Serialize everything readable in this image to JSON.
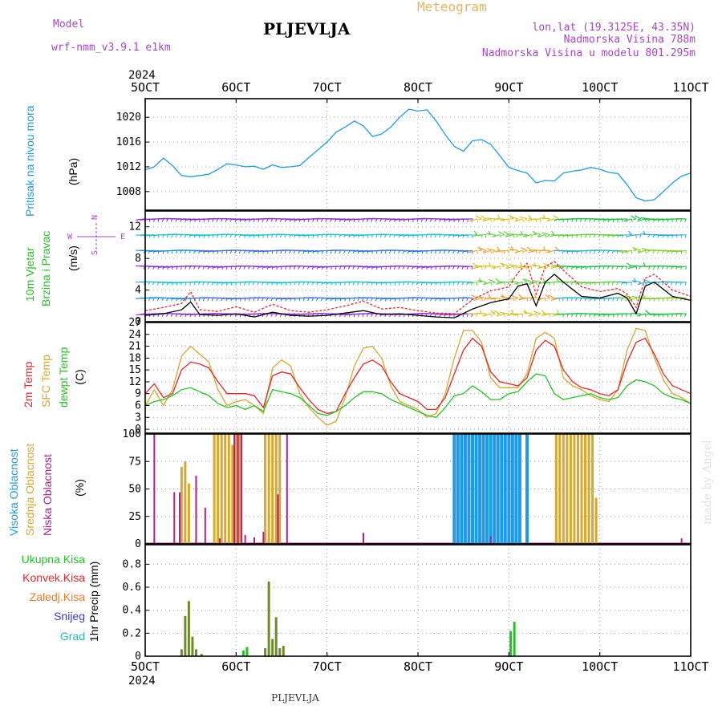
{
  "header": {
    "model_label": "Model",
    "model_name": "wrf-nmm_v3.9.1  e1km",
    "station": "PLJEVLJA",
    "meteogram_label": "Meteogram",
    "lonlat": "lon,lat (19.3125E, 43.35N)",
    "altitude": "Nadmorska Visina 788m",
    "model_altitude": "Nadmorska Visina u modelu 801.295m",
    "credit": "made by Angel",
    "footer_station": "PLJEVLJA"
  },
  "colors": {
    "pressure": "#1e9be8",
    "wind_speed": "#000000",
    "wind_gust": "#e8262a",
    "temp2m": "#e8262a",
    "sfc_temp": "#d9a72b",
    "dewpoint": "#22c322",
    "high_cloud": "#1e9be8",
    "mid_cloud": "#d9a72b",
    "low_cloud": "#b0208a",
    "total_precip": "#22c322",
    "conv_precip": "#e8262a",
    "snow": "#3b3bd6",
    "hail": "#1fc0b0",
    "frozen_precip": "#f07a26",
    "label_purple": "#a846c9",
    "meteogram_orange": "#e3b45e"
  },
  "time_axis": {
    "year": "2024",
    "ticks": [
      "5OCT",
      "6OCT",
      "7OCT",
      "8OCT",
      "9OCT",
      "10OCT",
      "11OCT"
    ],
    "start_day": 5,
    "end_day": 11
  },
  "chart_data": [
    {
      "type": "line",
      "panel": "pressure",
      "ylabel_colored": "Pritisak na nivou mora",
      "unit": "(hPa)",
      "ylim": [
        1005,
        1023
      ],
      "yticks": [
        1008,
        1012,
        1016,
        1020
      ],
      "grid": true,
      "x": [
        5.0,
        5.1,
        5.2,
        5.3,
        5.4,
        5.5,
        5.6,
        5.7,
        5.8,
        5.9,
        6.0,
        6.1,
        6.2,
        6.3,
        6.4,
        6.5,
        6.6,
        6.7,
        6.8,
        7.0,
        7.1,
        7.2,
        7.3,
        7.4,
        7.5,
        7.6,
        7.7,
        7.8,
        7.9,
        8.0,
        8.1,
        8.2,
        8.3,
        8.4,
        8.5,
        8.6,
        8.7,
        8.8,
        8.9,
        9.0,
        9.1,
        9.2,
        9.3,
        9.4,
        9.5,
        9.6,
        9.7,
        9.8,
        9.9,
        10.0,
        10.1,
        10.2,
        10.3,
        10.4,
        10.5,
        10.6,
        10.7,
        10.8,
        10.9,
        11.0
      ],
      "series": [
        {
          "values": [
            1011.5,
            1012.0,
            1013.4,
            1012.2,
            1010.6,
            1010.4,
            1010.6,
            1010.8,
            1011.6,
            1012.5,
            1012.3,
            1012.0,
            1012.1,
            1011.6,
            1012.3,
            1011.9,
            1012.0,
            1012.2,
            1013.5,
            1016.0,
            1017.6,
            1018.4,
            1019.4,
            1018.6,
            1016.9,
            1017.3,
            1018.4,
            1020.0,
            1021.3,
            1021.0,
            1021.2,
            1019.4,
            1017.2,
            1015.3,
            1014.5,
            1016.2,
            1016.4,
            1015.6,
            1013.8,
            1011.9,
            1011.4,
            1011.0,
            1009.4,
            1009.8,
            1009.7,
            1011.0,
            1011.3,
            1011.5,
            1011.9,
            1011.6,
            1011.1,
            1010.9,
            1009.1,
            1007.0,
            1006.5,
            1006.7,
            1008.0,
            1009.4,
            1010.5,
            1011.0
          ]
        }
      ]
    },
    {
      "type": "line",
      "panel": "wind",
      "ylabel_colored_1": "10m Vjetar",
      "ylabel_colored_2": "Brzina i Pravac",
      "unit": "(m/s)",
      "compass": {
        "n": "N",
        "s": "S",
        "e": "E",
        "w": "W"
      },
      "ylim": [
        0,
        14
      ],
      "yticks": [
        0,
        4,
        8,
        12
      ],
      "grid": true,
      "x": [
        5.0,
        5.2,
        5.4,
        5.5,
        5.6,
        5.8,
        6.0,
        6.2,
        6.4,
        6.6,
        6.8,
        7.0,
        7.2,
        7.4,
        7.6,
        7.8,
        8.0,
        8.2,
        8.4,
        8.6,
        8.8,
        9.0,
        9.1,
        9.2,
        9.3,
        9.4,
        9.5,
        9.6,
        9.8,
        10.0,
        10.2,
        10.3,
        10.4,
        10.5,
        10.6,
        10.8,
        11.0
      ],
      "series": [
        {
          "name": "speed",
          "values": [
            0.8,
            1.0,
            1.5,
            2.5,
            0.9,
            0.8,
            1.0,
            0.6,
            1.2,
            0.8,
            0.7,
            0.8,
            1.1,
            1.4,
            0.9,
            1.0,
            0.8,
            0.6,
            0.5,
            1.6,
            2.4,
            2.9,
            4.5,
            4.8,
            2.0,
            5.0,
            6.0,
            5.0,
            3.2,
            3.0,
            3.6,
            3.0,
            1.0,
            4.5,
            5.0,
            3.2,
            2.7
          ]
        },
        {
          "name": "gust",
          "values": [
            1.4,
            1.8,
            2.3,
            3.8,
            1.5,
            1.3,
            1.9,
            1.2,
            2.2,
            1.4,
            1.2,
            1.5,
            2.0,
            2.6,
            1.6,
            1.8,
            1.4,
            1.1,
            1.0,
            2.8,
            3.9,
            4.4,
            6.2,
            7.4,
            3.5,
            7.0,
            7.6,
            6.5,
            4.4,
            3.8,
            4.2,
            3.5,
            1.8,
            5.5,
            6.0,
            4.0,
            3.2
          ]
        }
      ],
      "barb_levels": [
        0,
        2,
        4,
        6,
        8,
        10,
        12,
        14
      ]
    },
    {
      "type": "line",
      "panel": "temperature",
      "ylabel_colored_1": "2m Temp",
      "ylabel_colored_2": "SFC Temp",
      "ylabel_colored_3": "dewpt Temp",
      "unit": "(C)",
      "ylim": [
        -1,
        27
      ],
      "yticks": [
        0,
        3,
        6,
        9,
        12,
        15,
        18,
        21,
        24,
        27
      ],
      "grid": true,
      "x": [
        5.0,
        5.1,
        5.2,
        5.3,
        5.4,
        5.5,
        5.6,
        5.7,
        5.8,
        5.9,
        6.0,
        6.1,
        6.2,
        6.3,
        6.4,
        6.5,
        6.6,
        6.7,
        6.8,
        6.9,
        7.0,
        7.1,
        7.2,
        7.3,
        7.4,
        7.5,
        7.6,
        7.7,
        7.8,
        7.9,
        8.0,
        8.1,
        8.2,
        8.3,
        8.4,
        8.5,
        8.6,
        8.7,
        8.8,
        8.9,
        9.0,
        9.1,
        9.2,
        9.3,
        9.4,
        9.5,
        9.6,
        9.7,
        9.8,
        9.9,
        10.0,
        10.1,
        10.2,
        10.3,
        10.4,
        10.5,
        10.6,
        10.7,
        10.8,
        10.9,
        11.0
      ],
      "series": [
        {
          "name": "2m",
          "values": [
            9.0,
            11.5,
            8.0,
            9.0,
            15.0,
            17.0,
            16.5,
            15.5,
            12.0,
            9.0,
            9.0,
            9.0,
            8.5,
            5.5,
            13.5,
            14.5,
            14.0,
            10.5,
            7.5,
            5.0,
            4.0,
            4.5,
            9.0,
            13.0,
            16.5,
            17.5,
            16.0,
            12.0,
            9.0,
            8.0,
            7.0,
            5.0,
            5.0,
            8.0,
            14.0,
            20.0,
            23.0,
            21.0,
            14.5,
            12.0,
            11.5,
            11.0,
            13.0,
            20.0,
            22.5,
            21.0,
            15.0,
            12.0,
            10.5,
            10.0,
            9.0,
            8.5,
            10.0,
            17.0,
            22.0,
            23.0,
            19.0,
            14.0,
            11.0,
            10.0,
            9.0
          ]
        },
        {
          "name": "sfc",
          "values": [
            6.0,
            10.0,
            6.0,
            10.0,
            18.5,
            21.0,
            19.0,
            17.0,
            10.0,
            6.0,
            7.0,
            7.5,
            6.0,
            4.0,
            15.5,
            17.5,
            16.0,
            9.0,
            5.5,
            3.0,
            1.0,
            2.0,
            8.0,
            16.0,
            20.5,
            21.0,
            18.0,
            11.0,
            7.0,
            6.0,
            5.0,
            3.0,
            4.0,
            9.0,
            18.0,
            25.0,
            25.0,
            22.0,
            13.0,
            10.5,
            10.5,
            10.5,
            14.0,
            23.0,
            24.5,
            23.0,
            13.0,
            11.0,
            10.0,
            8.5,
            7.5,
            7.0,
            10.0,
            20.0,
            25.5,
            25.0,
            18.0,
            12.5,
            9.0,
            8.0,
            6.5
          ]
        },
        {
          "name": "dewpoint",
          "values": [
            6.0,
            7.0,
            7.5,
            8.5,
            10.0,
            10.5,
            9.5,
            8.5,
            6.5,
            5.5,
            6.0,
            5.0,
            6.0,
            4.5,
            10.0,
            9.5,
            9.0,
            8.0,
            6.0,
            4.0,
            3.5,
            4.5,
            6.0,
            8.0,
            9.5,
            9.5,
            9.0,
            7.5,
            6.5,
            5.5,
            4.5,
            3.5,
            3.0,
            5.5,
            8.5,
            9.0,
            11.0,
            9.5,
            7.5,
            7.5,
            9.0,
            9.5,
            12.0,
            14.0,
            13.5,
            9.0,
            7.5,
            8.0,
            8.5,
            9.0,
            8.0,
            7.5,
            8.0,
            11.0,
            12.5,
            12.0,
            11.0,
            9.0,
            8.0,
            7.5,
            6.5
          ]
        }
      ]
    },
    {
      "type": "bar",
      "panel": "clouds",
      "ylabel_colored_1": "Visoka Oblacnost",
      "ylabel_colored_2": "Srednja Oblacnost",
      "ylabel_colored_3": "Niska Oblacnost",
      "unit": "(%)",
      "ylim": [
        0,
        100
      ],
      "yticks": [
        0,
        25,
        50,
        75,
        100
      ],
      "grid": true,
      "series": [
        {
          "name": "high",
          "x": [
            8.4,
            8.44,
            8.48,
            8.52,
            8.56,
            8.6,
            8.64,
            8.68,
            8.72,
            8.76,
            8.8,
            8.84,
            8.88,
            8.92,
            8.96,
            9.0,
            9.04,
            9.08,
            9.12,
            9.2
          ],
          "values": [
            100,
            100,
            100,
            100,
            100,
            100,
            100,
            100,
            100,
            100,
            100,
            100,
            100,
            100,
            100,
            100,
            100,
            100,
            100,
            100
          ]
        },
        {
          "name": "mid",
          "x": [
            5.4,
            5.44,
            5.48,
            5.76,
            5.8,
            5.84,
            5.88,
            5.92,
            5.96,
            6.0,
            6.04,
            6.32,
            6.36,
            6.4,
            6.44,
            6.48,
            9.52,
            9.56,
            9.6,
            9.64,
            9.68,
            9.72,
            9.76,
            9.8,
            9.84,
            9.88,
            9.92,
            9.96
          ],
          "values": [
            70,
            75,
            55,
            100,
            100,
            100,
            100,
            100,
            90,
            100,
            100,
            100,
            100,
            100,
            100,
            100,
            100,
            100,
            100,
            100,
            100,
            100,
            100,
            100,
            100,
            100,
            100,
            42
          ]
        },
        {
          "name": "low",
          "x": [
            5.1,
            5.32,
            5.38,
            5.56,
            5.66,
            5.82,
            5.98,
            6.02,
            6.06,
            6.1,
            6.2,
            6.3,
            6.46,
            6.56,
            7.4,
            8.8,
            10.9,
            11.3,
            11.4,
            12.0
          ],
          "values": [
            100,
            47,
            47,
            62,
            33,
            5,
            100,
            100,
            100,
            8,
            6,
            11,
            45,
            100,
            10,
            7,
            5,
            5,
            3,
            3
          ]
        }
      ]
    },
    {
      "type": "bar",
      "panel": "precip",
      "ylabel": "1hr Precip (mm)",
      "legend": [
        "Ukupna Kisa",
        "Konvek.Kisa",
        "Zaledj.Kisa",
        "Snijeg",
        "Grad"
      ],
      "ylim": [
        0,
        0.97
      ],
      "yticks": [
        0,
        0.2,
        0.4,
        0.6,
        0.8
      ],
      "grid": true,
      "series": [
        {
          "name": "total",
          "x": [
            5.4,
            5.44,
            5.48,
            5.52,
            5.56,
            5.62,
            6.08,
            6.12,
            6.32,
            6.36,
            6.4,
            6.44,
            6.48,
            6.52,
            9.02,
            9.06
          ],
          "values": [
            0.06,
            0.35,
            0.48,
            0.17,
            0.06,
            0.02,
            0.05,
            0.08,
            0.07,
            0.65,
            0.15,
            0.34,
            0.07,
            0.09,
            0.22,
            0.3
          ]
        }
      ]
    }
  ]
}
